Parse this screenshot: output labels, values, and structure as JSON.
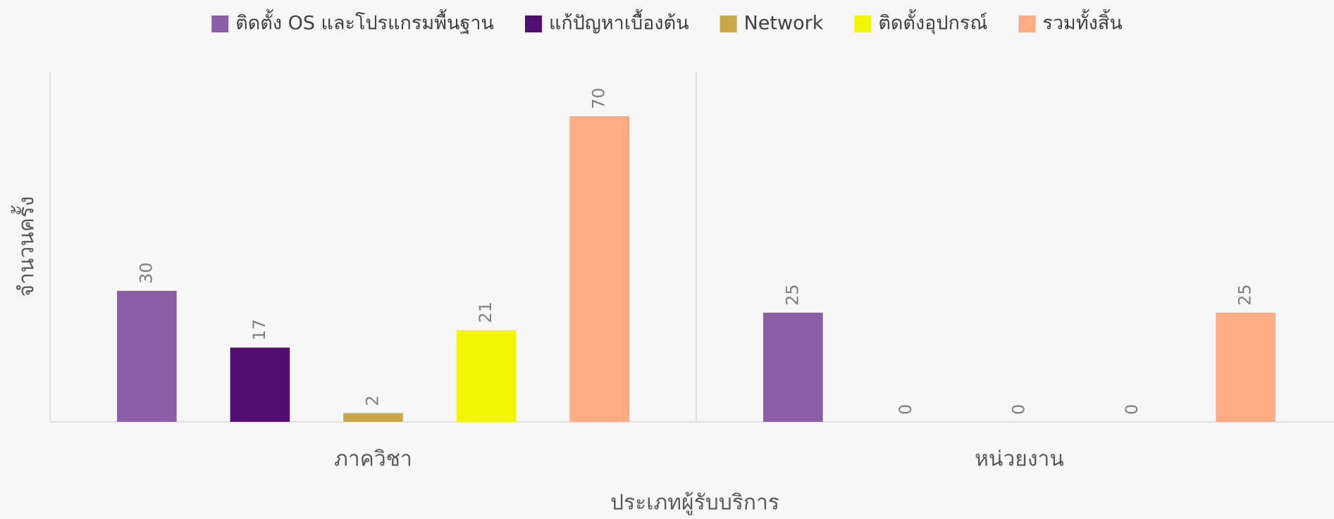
{
  "chart_data": {
    "type": "bar",
    "x_label": "ประเภทผู้รับบริการ",
    "y_label": "จำนวนครั้ง",
    "categories": [
      "ภาควิชา",
      "หน่วยงาน"
    ],
    "series": [
      {
        "name": "ติดตั้ง OS และโปรแกรมพื้นฐาน",
        "color": "#8b5ea6",
        "values": [
          30,
          25
        ]
      },
      {
        "name": "แก้ปัญหาเบื้องต้น",
        "color": "#4f0e70",
        "values": [
          17,
          0
        ]
      },
      {
        "name": "Network",
        "color": "#c8a84a",
        "values": [
          2,
          0
        ]
      },
      {
        "name": "ติดตั้งอุปกรณ์",
        "color": "#f2f600",
        "values": [
          21,
          0
        ]
      },
      {
        "name": "รวมทั้งสิ้น",
        "color": "#ffac84",
        "values": [
          70,
          25
        ]
      }
    ],
    "ylim": [
      0,
      80
    ],
    "legend": "top"
  }
}
